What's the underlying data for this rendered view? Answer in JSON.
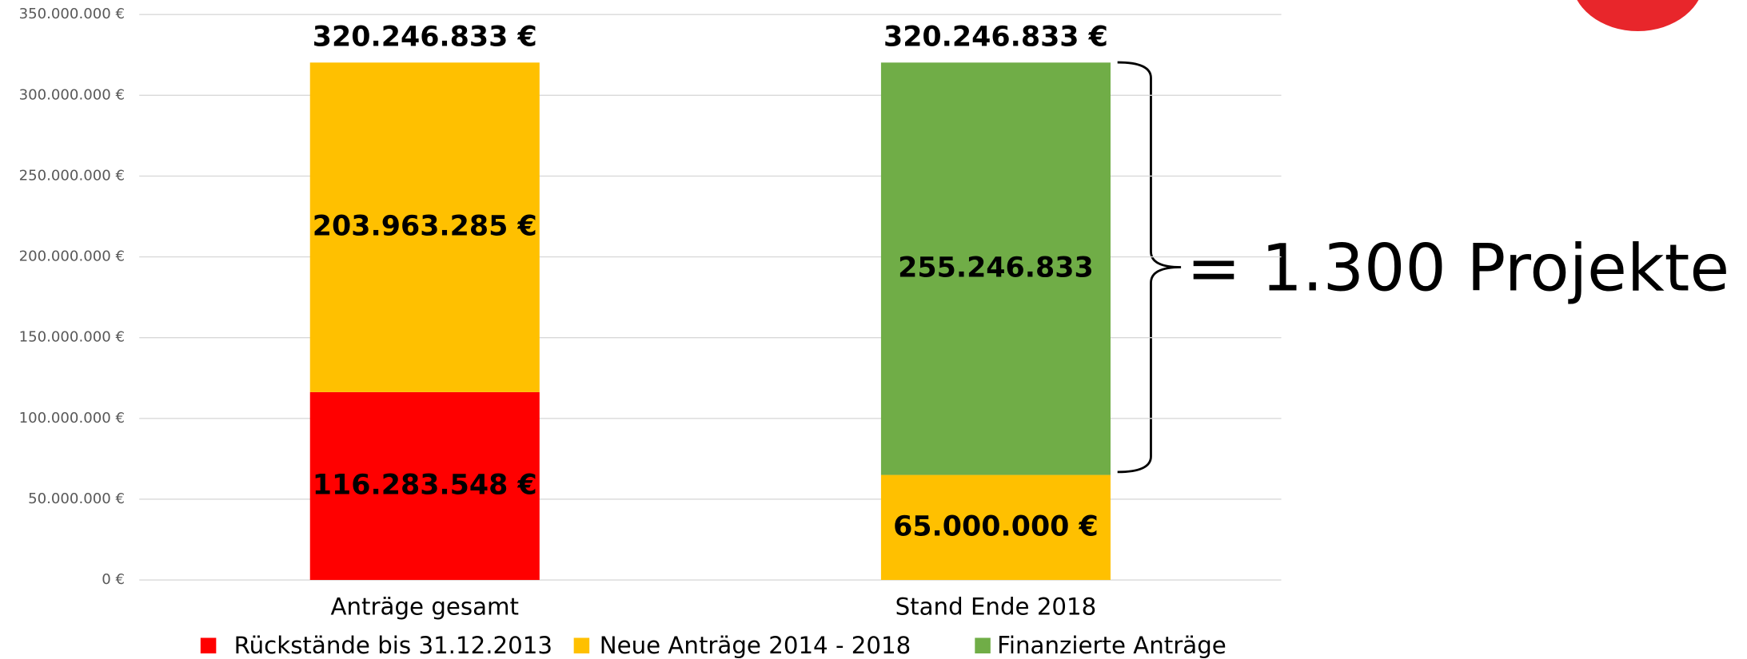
{
  "chart_data": {
    "type": "stacked_bar",
    "categories": [
      "Anträge gesamt",
      "Stand Ende 2018"
    ],
    "series": [
      {
        "name": "Rückstände bis 31.12.2013",
        "color": "#ff0000",
        "values": [
          116283548,
          null
        ],
        "value_labels": [
          "116.283.548 €",
          null
        ]
      },
      {
        "name": "Neue Anträge 2014 - 2018",
        "color": "#ffc000",
        "values": [
          203963285,
          65000000
        ],
        "value_labels": [
          "203.963.285 €",
          "65.000.000 €"
        ]
      },
      {
        "name": "Finanzierte Anträge",
        "color": "#70ad47",
        "values": [
          null,
          255246833
        ],
        "value_labels": [
          null,
          "255.246.833"
        ]
      }
    ],
    "totals": [
      320246833,
      320246833
    ],
    "total_labels": [
      "320.246.833 €",
      "320.246.833 €"
    ],
    "annotation": "= 1.300 Projekte",
    "ylim": [
      0,
      350000000
    ],
    "yticks": [
      {
        "value": 0,
        "label": "0 €"
      },
      {
        "value": 50000000,
        "label": "50.000.000 €"
      },
      {
        "value": 100000000,
        "label": "100.000.000 €"
      },
      {
        "value": 150000000,
        "label": "150.000.000 €"
      },
      {
        "value": 200000000,
        "label": "200.000.000 €"
      },
      {
        "value": 250000000,
        "label": "250.000.000 €"
      },
      {
        "value": 300000000,
        "label": "300.000.000 €"
      },
      {
        "value": 350000000,
        "label": "350.000.000 €"
      }
    ],
    "grid": true
  }
}
